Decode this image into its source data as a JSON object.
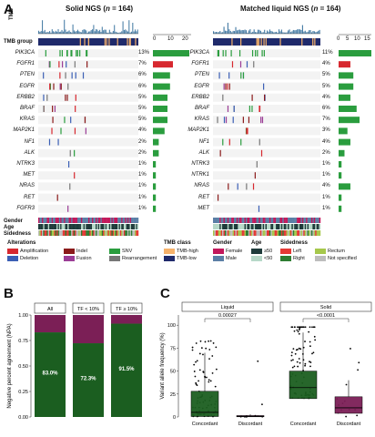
{
  "panels": {
    "a": "A",
    "b": "B",
    "c": "C"
  },
  "oncoprint": {
    "left": {
      "title_main": "Solid NGS (",
      "title_n": "n",
      "title_rest": " = 164)"
    },
    "right": {
      "title_main": "Matched liquid NGS (",
      "title_n": "n",
      "title_rest": " = 164)"
    },
    "tmb_label": "TMB",
    "tmb_group_label": "TMB group",
    "left_axis_ticks": [
      "0",
      "10",
      "20"
    ],
    "right_axis_ticks": [
      "0",
      "5",
      "10",
      "15"
    ],
    "track_labels": [
      "Gender",
      "Age",
      "Sidedness"
    ],
    "genes_left": [
      {
        "name": "PIK3CA",
        "pct": "13%",
        "bar": 1.0
      },
      {
        "name": "FGFR1",
        "pct": "7%",
        "bar": 0.55
      },
      {
        "name": "PTEN",
        "pct": "6%",
        "bar": 0.47
      },
      {
        "name": "EGFR",
        "pct": "6%",
        "bar": 0.47
      },
      {
        "name": "ERBB2",
        "pct": "5%",
        "bar": 0.4
      },
      {
        "name": "BRAF",
        "pct": "5%",
        "bar": 0.4
      },
      {
        "name": "KRAS",
        "pct": "5%",
        "bar": 0.4
      },
      {
        "name": "MAP2K1",
        "pct": "4%",
        "bar": 0.32
      },
      {
        "name": "NF1",
        "pct": "2%",
        "bar": 0.16
      },
      {
        "name": "ALK",
        "pct": "2%",
        "bar": 0.16
      },
      {
        "name": "NTRK3",
        "pct": "1%",
        "bar": 0.08
      },
      {
        "name": "MET",
        "pct": "1%",
        "bar": 0.08
      },
      {
        "name": "NRAS",
        "pct": "1%",
        "bar": 0.08
      },
      {
        "name": "RET",
        "pct": "1%",
        "bar": 0.08
      },
      {
        "name": "FGFR3",
        "pct": "1%",
        "bar": 0.08
      }
    ],
    "genes_right": [
      {
        "name": "PIK3CA",
        "pct": "11%",
        "bar": 1.0
      },
      {
        "name": "FGFR1",
        "pct": "4%",
        "bar": 0.36
      },
      {
        "name": "PTEN",
        "pct": "5%",
        "bar": 0.45
      },
      {
        "name": "EGFR",
        "pct": "5%",
        "bar": 0.45
      },
      {
        "name": "ERBB2",
        "pct": "4%",
        "bar": 0.36
      },
      {
        "name": "BRAF",
        "pct": "6%",
        "bar": 0.55
      },
      {
        "name": "KRAS",
        "pct": "7%",
        "bar": 0.64
      },
      {
        "name": "MAP2K1",
        "pct": "3%",
        "bar": 0.27
      },
      {
        "name": "NF1",
        "pct": "4%",
        "bar": 0.36
      },
      {
        "name": "ALK",
        "pct": "2%",
        "bar": 0.18
      },
      {
        "name": "NTRK3",
        "pct": "1%",
        "bar": 0.09
      },
      {
        "name": "NTRK1",
        "pct": "1%",
        "bar": 0.09
      },
      {
        "name": "NRAS",
        "pct": "4%",
        "bar": 0.36
      },
      {
        "name": "RET",
        "pct": "1%",
        "bar": 0.09
      },
      {
        "name": "MET",
        "pct": "1%",
        "bar": 0.09
      }
    ]
  },
  "legend": {
    "alterations_title": "Alterations",
    "alterations": [
      {
        "label": "Amplification",
        "color": "#d7282f"
      },
      {
        "label": "Indel",
        "color": "#8b1a1a"
      },
      {
        "label": "SNV",
        "color": "#2a9d3e"
      },
      {
        "label": "Deletion",
        "color": "#3b5fb5"
      },
      {
        "label": "Fusion",
        "color": "#9b3d96"
      },
      {
        "label": "Rearrangement",
        "color": "#777777"
      }
    ],
    "tmb_title": "TMB class",
    "tmb": [
      {
        "label": "TMB-high",
        "color": "#f6b26b"
      },
      {
        "label": "TMB-low",
        "color": "#1f2a6b"
      }
    ],
    "gender_title": "Gender",
    "gender": [
      {
        "label": "Female",
        "color": "#c2185b"
      },
      {
        "label": "Male",
        "color": "#5b7fa6"
      }
    ],
    "age_title": "Age",
    "age": [
      {
        "label": "≥50",
        "color": "#1f3b3b"
      },
      {
        "label": "<50",
        "color": "#b7d8c8"
      }
    ],
    "side_title": "Sidedness",
    "side": [
      {
        "label": "Left",
        "color": "#e53935"
      },
      {
        "label": "Rectum",
        "color": "#a6c84c"
      },
      {
        "label": "Right",
        "color": "#2e7d32"
      },
      {
        "label": "Not specified",
        "color": "#bdbdbd"
      }
    ]
  },
  "chart_data": [
    {
      "type": "bar",
      "panel": "B",
      "ylabel": "Negative percent agreement (NPA)",
      "yticks": [
        "0.00",
        "0.25",
        "0.50",
        "0.75",
        "1.00"
      ],
      "ylim": [
        0,
        1
      ],
      "categories": [
        "All",
        "TF < 10%",
        "TF ≥ 10%"
      ],
      "values": [
        0.83,
        0.723,
        0.915
      ],
      "value_labels": [
        "83.0%",
        "72.3%",
        "91.5%"
      ],
      "colors": {
        "value": "#1b5e20",
        "remainder": "#7b1f56"
      }
    },
    {
      "type": "box",
      "panel": "C",
      "ylabel": "Variant allele frequency (%)",
      "yticks": [
        "0",
        "25",
        "50",
        "75",
        "100"
      ],
      "ylim": [
        0,
        100
      ],
      "facets": [
        {
          "name": "Liquid",
          "pvalue": "0.00027",
          "groups": [
            {
              "name": "Concordant",
              "q1": 0.5,
              "median": 5,
              "q3": 28,
              "whisker_high": 70,
              "color": "#1b5e20"
            },
            {
              "name": "Discordant",
              "q1": 0.2,
              "median": 0.8,
              "q3": 1.5,
              "whisker_high": 3,
              "color": "#7b1f56"
            }
          ]
        },
        {
          "name": "Solid",
          "pvalue": "<0.0001",
          "groups": [
            {
              "name": "Concordant",
              "q1": 20,
              "median": 32,
              "q3": 50,
              "whisker_high": 92,
              "color": "#1b5e20"
            },
            {
              "name": "Discordant",
              "q1": 4,
              "median": 10,
              "q3": 22,
              "whisker_high": 40,
              "color": "#7b1f56"
            }
          ]
        }
      ]
    }
  ]
}
